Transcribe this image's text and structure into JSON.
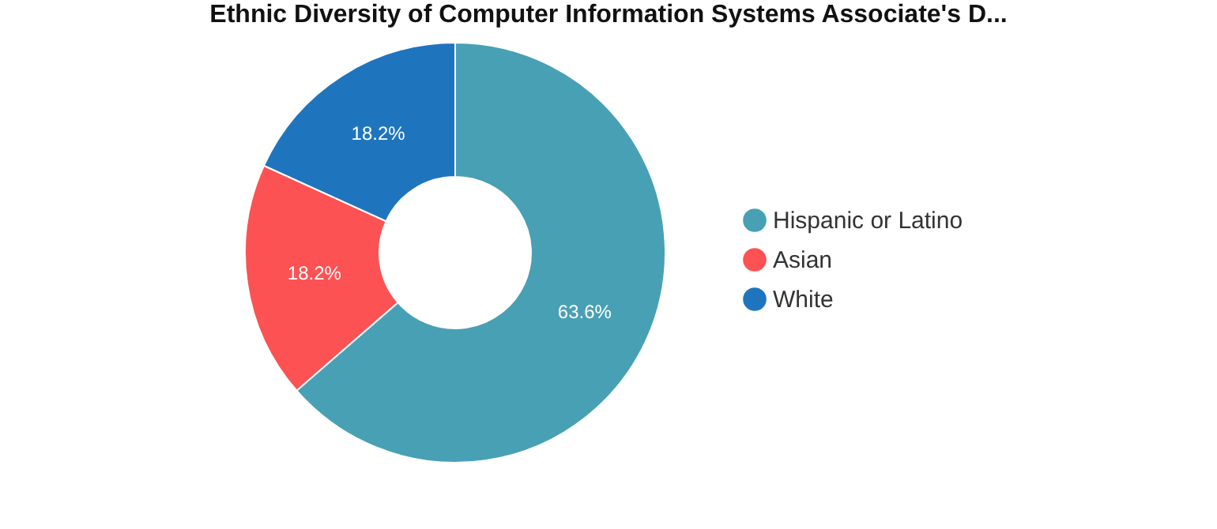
{
  "chart_data": {
    "type": "donut",
    "title": "Ethnic Diversity of Computer Information Systems Associate's D...",
    "categories": [
      "Hispanic or Latino",
      "Asian",
      "White"
    ],
    "values": [
      63.6,
      18.2,
      18.2
    ],
    "colors": [
      "#48a0b5",
      "#fd5254",
      "#1f75bd"
    ],
    "value_labels": [
      "63.6%",
      "18.2%",
      "18.2%"
    ],
    "legend": "right"
  }
}
